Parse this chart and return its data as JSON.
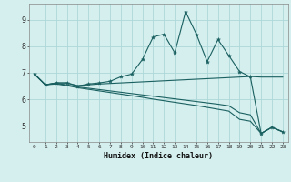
{
  "xlabel": "Humidex (Indice chaleur)",
  "xlim_min": -0.5,
  "xlim_max": 23.5,
  "ylim_min": 4.4,
  "ylim_max": 9.6,
  "yticks": [
    5,
    6,
    7,
    8,
    9
  ],
  "xticks": [
    0,
    1,
    2,
    3,
    4,
    5,
    6,
    7,
    8,
    9,
    10,
    11,
    12,
    13,
    14,
    15,
    16,
    17,
    18,
    19,
    20,
    21,
    22,
    23
  ],
  "background_color": "#d5eeee",
  "grid_color": "#aed8d8",
  "line_color": "#1a6060",
  "main_x": [
    0,
    1,
    2,
    3,
    4,
    5,
    6,
    7,
    8,
    9,
    10,
    11,
    12,
    13,
    14,
    15,
    16,
    17,
    18,
    19,
    20,
    21,
    22,
    23
  ],
  "main_y": [
    6.95,
    6.55,
    6.62,
    6.62,
    6.5,
    6.58,
    6.62,
    6.68,
    6.85,
    6.95,
    7.5,
    8.35,
    8.45,
    7.75,
    9.3,
    8.45,
    7.42,
    8.25,
    7.65,
    7.05,
    6.85,
    4.72,
    4.95,
    4.78
  ],
  "trend1_x": [
    0,
    1,
    2,
    3,
    4,
    5,
    6,
    7,
    8,
    9,
    10,
    11,
    12,
    13,
    14,
    15,
    16,
    17,
    18,
    19,
    20,
    21,
    22,
    23
  ],
  "trend1_y": [
    6.95,
    6.55,
    6.62,
    6.62,
    6.52,
    6.55,
    6.58,
    6.6,
    6.62,
    6.64,
    6.66,
    6.68,
    6.7,
    6.72,
    6.74,
    6.76,
    6.78,
    6.8,
    6.82,
    6.84,
    6.86,
    6.84,
    6.84,
    6.84
  ],
  "trend2_x": [
    0,
    1,
    2,
    3,
    4,
    5,
    6,
    7,
    8,
    9,
    10,
    11,
    12,
    13,
    14,
    15,
    16,
    17,
    18,
    19,
    20,
    21,
    22,
    23
  ],
  "trend2_y": [
    6.95,
    6.55,
    6.6,
    6.55,
    6.47,
    6.42,
    6.37,
    6.32,
    6.27,
    6.22,
    6.17,
    6.12,
    6.07,
    6.02,
    5.97,
    5.92,
    5.87,
    5.82,
    5.76,
    5.5,
    5.42,
    4.72,
    4.95,
    4.78
  ],
  "trend3_x": [
    0,
    1,
    2,
    3,
    4,
    5,
    6,
    7,
    8,
    9,
    10,
    11,
    12,
    13,
    14,
    15,
    16,
    17,
    18,
    19,
    20,
    21,
    22,
    23
  ],
  "trend3_y": [
    6.95,
    6.55,
    6.58,
    6.52,
    6.44,
    6.38,
    6.32,
    6.26,
    6.2,
    6.14,
    6.08,
    6.01,
    5.95,
    5.89,
    5.83,
    5.77,
    5.7,
    5.63,
    5.56,
    5.25,
    5.18,
    4.72,
    4.95,
    4.78
  ]
}
